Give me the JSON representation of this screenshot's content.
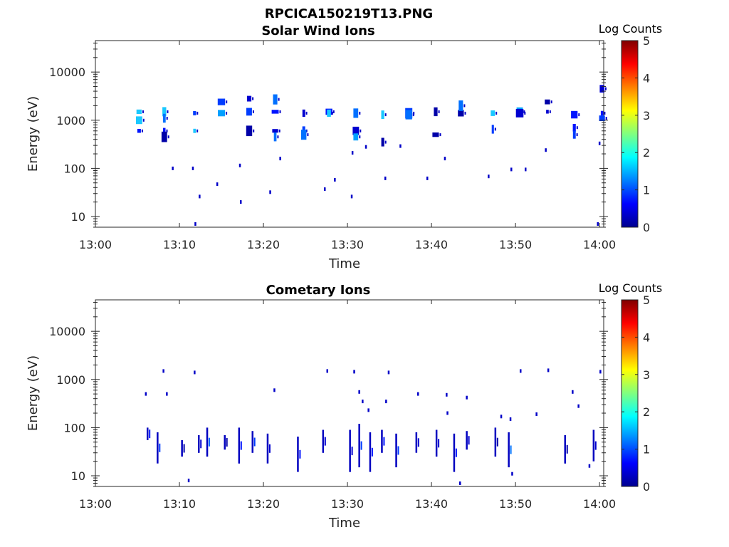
{
  "figure_title": "RPCICA150219T13.PNG",
  "chart_data": [
    {
      "type": "heatmap",
      "title": "Solar Wind Ions",
      "xlabel": "Time",
      "ylabel": "Energy (eV)",
      "x_ticks": [
        "13:00",
        "13:10",
        "13:20",
        "13:30",
        "13:40",
        "13:50",
        "14:00"
      ],
      "xlim_minutes": [
        0,
        60.5
      ],
      "y_scale": "log",
      "y_ticks": [
        "10",
        "100",
        "1000",
        "10000"
      ],
      "ylim": [
        6,
        45000
      ],
      "grid": false,
      "colorbar": {
        "label": "Log Counts",
        "ticks": [
          "0",
          "1",
          "2",
          "3",
          "4",
          "5"
        ],
        "range": [
          0,
          5
        ],
        "colormap": "jet"
      },
      "bursts": [
        {
          "t": 5.2,
          "energies": [
            1000,
            1500,
            600
          ]
        },
        {
          "t": 8.2,
          "energies": [
            1500,
            1100,
            600,
            450
          ]
        },
        {
          "t": 11.8,
          "energies": [
            1400,
            600
          ]
        },
        {
          "t": 15.0,
          "energies": [
            1400,
            2400
          ]
        },
        {
          "t": 18.3,
          "energies": [
            1500,
            2800,
            600
          ]
        },
        {
          "t": 21.4,
          "energies": [
            1500,
            2700,
            600,
            450
          ]
        },
        {
          "t": 24.8,
          "energies": [
            1400,
            600,
            500
          ]
        },
        {
          "t": 27.8,
          "energies": [
            1500,
            1400
          ]
        },
        {
          "t": 31.0,
          "energies": [
            1400,
            600,
            450
          ]
        },
        {
          "t": 34.2,
          "energies": [
            1300,
            350
          ]
        },
        {
          "t": 37.3,
          "energies": [
            1400,
            1300
          ]
        },
        {
          "t": 40.5,
          "energies": [
            1500,
            500
          ]
        },
        {
          "t": 43.5,
          "energies": [
            1400,
            2000
          ]
        },
        {
          "t": 47.3,
          "energies": [
            1400,
            650
          ]
        },
        {
          "t": 50.5,
          "energies": [
            1500,
            1400
          ]
        },
        {
          "t": 53.8,
          "energies": [
            1500,
            2400
          ]
        },
        {
          "t": 57.0,
          "energies": [
            1300,
            700,
            500
          ]
        },
        {
          "t": 60.3,
          "energies": [
            1400,
            4500,
            1100
          ]
        }
      ],
      "scattered": [
        {
          "t": 9.2,
          "e": 100
        },
        {
          "t": 11.6,
          "e": 100
        },
        {
          "t": 12.4,
          "e": 26
        },
        {
          "t": 11.9,
          "e": 7
        },
        {
          "t": 14.5,
          "e": 47
        },
        {
          "t": 17.2,
          "e": 115
        },
        {
          "t": 17.3,
          "e": 20
        },
        {
          "t": 20.8,
          "e": 32
        },
        {
          "t": 22.0,
          "e": 160
        },
        {
          "t": 27.3,
          "e": 37
        },
        {
          "t": 28.5,
          "e": 58
        },
        {
          "t": 30.5,
          "e": 26
        },
        {
          "t": 30.6,
          "e": 210
        },
        {
          "t": 34.5,
          "e": 62
        },
        {
          "t": 39.5,
          "e": 62
        },
        {
          "t": 41.6,
          "e": 160
        },
        {
          "t": 46.8,
          "e": 68
        },
        {
          "t": 49.5,
          "e": 95
        },
        {
          "t": 51.2,
          "e": 95
        },
        {
          "t": 53.6,
          "e": 240
        },
        {
          "t": 59.8,
          "e": 7
        },
        {
          "t": 60.0,
          "e": 330
        },
        {
          "t": 36.3,
          "e": 290
        },
        {
          "t": 32.2,
          "e": 280
        }
      ]
    },
    {
      "type": "heatmap",
      "title": "Cometary Ions",
      "xlabel": "Time",
      "ylabel": "Energy (eV)",
      "x_ticks": [
        "13:00",
        "13:10",
        "13:20",
        "13:30",
        "13:40",
        "13:50",
        "14:00"
      ],
      "xlim_minutes": [
        0,
        60.5
      ],
      "y_scale": "log",
      "y_ticks": [
        "10",
        "100",
        "1000",
        "10000"
      ],
      "ylim": [
        6,
        45000
      ],
      "grid": false,
      "colorbar": {
        "label": "Log Counts",
        "ticks": [
          "0",
          "1",
          "2",
          "3",
          "4",
          "5"
        ],
        "range": [
          0,
          5
        ],
        "colormap": "jet"
      },
      "columns": [
        {
          "t": 6.2,
          "lo": 55,
          "hi": 100
        },
        {
          "t": 7.4,
          "lo": 18,
          "hi": 80
        },
        {
          "t": 10.3,
          "lo": 25,
          "hi": 55
        },
        {
          "t": 12.3,
          "lo": 30,
          "hi": 70
        },
        {
          "t": 13.3,
          "lo": 25,
          "hi": 100
        },
        {
          "t": 15.4,
          "lo": 35,
          "hi": 70
        },
        {
          "t": 17.1,
          "lo": 18,
          "hi": 100
        },
        {
          "t": 18.7,
          "lo": 30,
          "hi": 85
        },
        {
          "t": 20.5,
          "lo": 18,
          "hi": 75
        },
        {
          "t": 24.1,
          "lo": 12,
          "hi": 65
        },
        {
          "t": 27.1,
          "lo": 30,
          "hi": 90
        },
        {
          "t": 30.3,
          "lo": 12,
          "hi": 90
        },
        {
          "t": 31.4,
          "lo": 15,
          "hi": 120
        },
        {
          "t": 32.7,
          "lo": 12,
          "hi": 80
        },
        {
          "t": 34.1,
          "lo": 30,
          "hi": 90
        },
        {
          "t": 35.8,
          "lo": 15,
          "hi": 75
        },
        {
          "t": 38.2,
          "lo": 30,
          "hi": 80
        },
        {
          "t": 40.6,
          "lo": 25,
          "hi": 90
        },
        {
          "t": 42.7,
          "lo": 12,
          "hi": 75
        },
        {
          "t": 44.2,
          "lo": 35,
          "hi": 85
        },
        {
          "t": 47.6,
          "lo": 25,
          "hi": 100
        },
        {
          "t": 49.2,
          "lo": 15,
          "hi": 80
        },
        {
          "t": 55.9,
          "lo": 18,
          "hi": 70
        },
        {
          "t": 59.3,
          "lo": 20,
          "hi": 90
        }
      ],
      "scattered": [
        {
          "t": 6.0,
          "e": 500
        },
        {
          "t": 8.1,
          "e": 1500
        },
        {
          "t": 8.5,
          "e": 500
        },
        {
          "t": 11.8,
          "e": 1400
        },
        {
          "t": 21.3,
          "e": 600
        },
        {
          "t": 27.6,
          "e": 1500
        },
        {
          "t": 30.8,
          "e": 1450
        },
        {
          "t": 31.4,
          "e": 550
        },
        {
          "t": 31.8,
          "e": 350
        },
        {
          "t": 32.5,
          "e": 230
        },
        {
          "t": 34.9,
          "e": 1400
        },
        {
          "t": 34.6,
          "e": 350
        },
        {
          "t": 38.4,
          "e": 500
        },
        {
          "t": 41.8,
          "e": 480
        },
        {
          "t": 41.9,
          "e": 200
        },
        {
          "t": 44.2,
          "e": 420
        },
        {
          "t": 48.3,
          "e": 170
        },
        {
          "t": 49.4,
          "e": 150
        },
        {
          "t": 50.6,
          "e": 1500
        },
        {
          "t": 52.5,
          "e": 190
        },
        {
          "t": 53.9,
          "e": 1550
        },
        {
          "t": 56.8,
          "e": 550
        },
        {
          "t": 57.5,
          "e": 280
        },
        {
          "t": 60.1,
          "e": 1450
        },
        {
          "t": 11.1,
          "e": 8
        },
        {
          "t": 43.4,
          "e": 7
        },
        {
          "t": 49.6,
          "e": 11
        },
        {
          "t": 58.8,
          "e": 16
        }
      ]
    }
  ]
}
